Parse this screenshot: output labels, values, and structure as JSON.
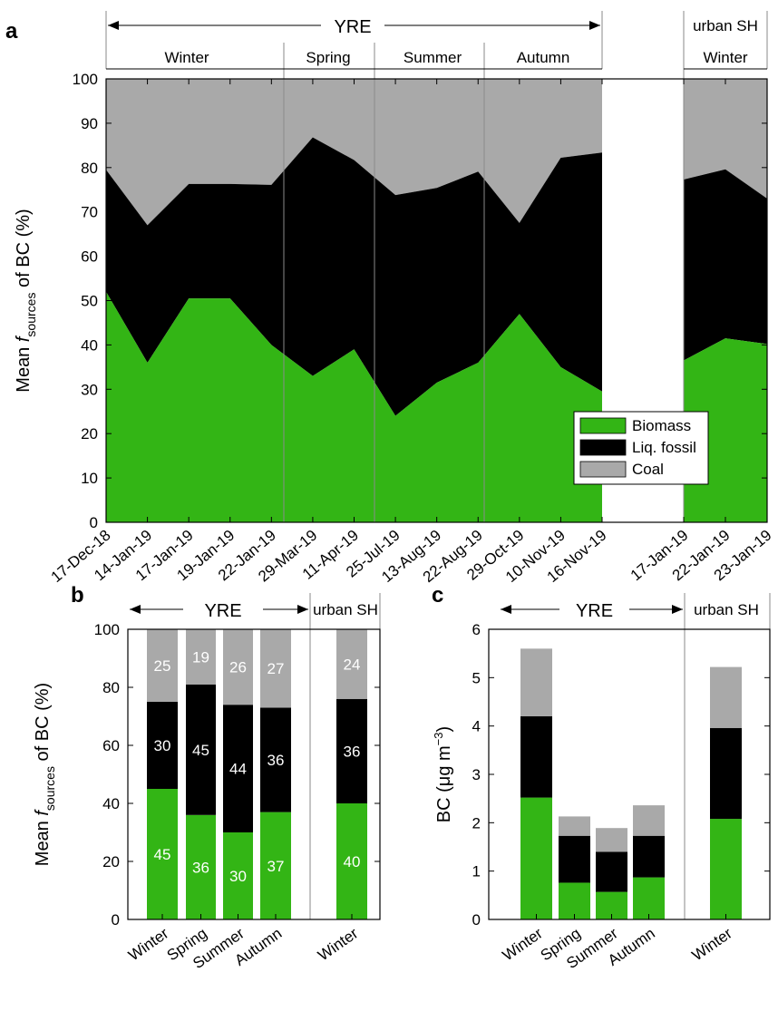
{
  "colors": {
    "biomass": "#33b515",
    "liq_fossil": "#000000",
    "coal": "#a9a9a9"
  },
  "panels": {
    "a": "a",
    "b": "b",
    "c": "c"
  },
  "header": {
    "yre": "YRE",
    "urban": "urban SH",
    "seasons_a": [
      "Winter",
      "Spring",
      "Summer",
      "Autumn"
    ],
    "urban_season": "Winter"
  },
  "legend": [
    "Biomass",
    "Liq. fossil",
    "Coal"
  ],
  "chart_data": [
    {
      "panel": "a",
      "type": "area",
      "ylabel_pre": "Mean ",
      "ylabel_f": "f",
      "ylabel_sub": "sources",
      "ylabel_post": " of BC (%)",
      "ylim": [
        0,
        100
      ],
      "yticks": [
        0,
        10,
        20,
        30,
        40,
        50,
        60,
        70,
        80,
        90,
        100
      ],
      "groups": [
        {
          "site": "YRE",
          "x": [
            "17-Dec-18",
            "14-Jan-19",
            "17-Jan-19",
            "19-Jan-19",
            "22-Jan-19",
            "29-Mar-19",
            "11-Apr-19",
            "25-Jul-19",
            "13-Aug-19",
            "22-Aug-19",
            "29-Oct-19",
            "10-Nov-19",
            "16-Nov-19"
          ],
          "series": [
            {
              "name": "Biomass",
              "cumulative": [
                52,
                36,
                50.5,
                50.5,
                40,
                33,
                39,
                24,
                31.5,
                36,
                47,
                35,
                29.5
              ]
            },
            {
              "name": "Liq. fossil",
              "cumulative": [
                79.5,
                67,
                76.3,
                76.3,
                76.1,
                86.8,
                81.7,
                73.8,
                75.4,
                79.1,
                67.5,
                82.2,
                83.4
              ]
            },
            {
              "name": "Coal",
              "cumulative": [
                100,
                100,
                100,
                100,
                100,
                100,
                100,
                100,
                100,
                100,
                100,
                100,
                100
              ]
            }
          ]
        },
        {
          "site": "urban SH",
          "x": [
            "17-Jan-19",
            "22-Jan-19",
            "23-Jan-19"
          ],
          "series": [
            {
              "name": "Biomass",
              "cumulative": [
                36.5,
                41.5,
                40.2
              ]
            },
            {
              "name": "Liq. fossil",
              "cumulative": [
                77.3,
                79.6,
                73
              ]
            },
            {
              "name": "Coal",
              "cumulative": [
                100,
                100,
                100
              ]
            }
          ]
        }
      ]
    },
    {
      "panel": "b",
      "type": "bar",
      "stacked": true,
      "ylabel_pre": "Mean ",
      "ylabel_f": "f",
      "ylabel_sub": "sources",
      "ylabel_post": " of BC (%)",
      "ylim": [
        0,
        100
      ],
      "yticks": [
        0,
        20,
        40,
        60,
        80,
        100
      ],
      "categories": [
        "Winter",
        "Spring",
        "Summer",
        "Autumn",
        "Winter"
      ],
      "series": [
        {
          "name": "Biomass",
          "values": [
            45,
            36,
            30,
            37,
            40
          ],
          "labels": [
            "45",
            "36",
            "30",
            "37",
            "40"
          ]
        },
        {
          "name": "Liq. fossil",
          "values": [
            30,
            45,
            44,
            36,
            36
          ],
          "labels": [
            "30",
            "45",
            "44",
            "36",
            "36"
          ]
        },
        {
          "name": "Coal",
          "values": [
            25,
            19,
            26,
            27,
            24
          ],
          "labels": [
            "25",
            "19",
            "26",
            "27",
            "24"
          ]
        }
      ]
    },
    {
      "panel": "c",
      "type": "bar",
      "stacked": true,
      "ylabel_pre": "BC (μg m",
      "ylabel_sup": "−3",
      "ylabel_post": ")",
      "ylim": [
        0,
        6
      ],
      "yticks": [
        0,
        1,
        2,
        3,
        4,
        5,
        6
      ],
      "categories": [
        "Winter",
        "Spring",
        "Summer",
        "Autumn",
        "Winter"
      ],
      "series": [
        {
          "name": "Biomass",
          "values": [
            2.52,
            0.76,
            0.57,
            0.87,
            2.08
          ]
        },
        {
          "name": "Liq. fossil",
          "values": [
            1.68,
            0.97,
            0.83,
            0.86,
            1.88
          ]
        },
        {
          "name": "Coal",
          "values": [
            1.4,
            0.4,
            0.49,
            0.63,
            1.26
          ]
        }
      ]
    }
  ]
}
